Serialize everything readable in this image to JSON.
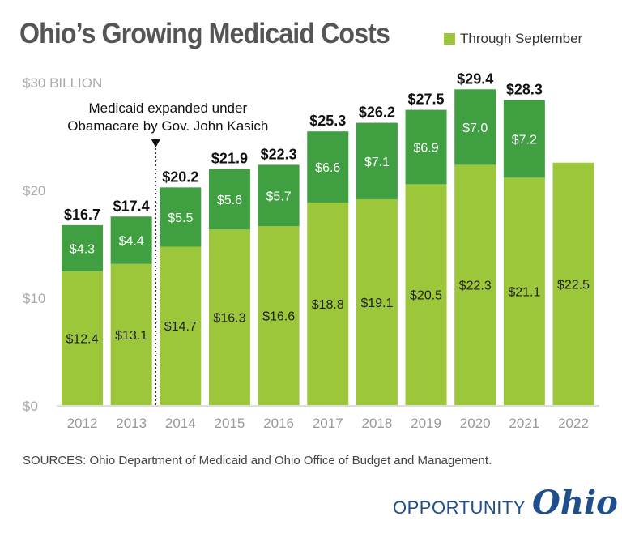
{
  "chart_data": {
    "type": "bar",
    "stacked": true,
    "title": "Ohio’s Growing Medicaid Costs",
    "ylabel": "$30 BILLION",
    "ylim": [
      0,
      30
    ],
    "yticks": [
      "$0",
      "$10",
      "$20"
    ],
    "categories": [
      "2012",
      "2013",
      "2014",
      "2015",
      "2016",
      "2017",
      "2018",
      "2019",
      "2020",
      "2021",
      "2022"
    ],
    "series": [
      {
        "name": "Through September",
        "color": "#9dc73b",
        "values": [
          12.4,
          13.1,
          14.7,
          16.3,
          16.6,
          18.8,
          19.1,
          20.5,
          22.3,
          21.1,
          22.5
        ],
        "labels": [
          "$12.4",
          "$13.1",
          "$14.7",
          "$16.3",
          "$16.6",
          "$18.8",
          "$19.1",
          "$20.5",
          "$22.3",
          "$21.1",
          "$22.5"
        ]
      },
      {
        "color": "#3f9f41",
        "values": [
          4.3,
          4.4,
          5.5,
          5.6,
          5.7,
          6.6,
          7.1,
          6.9,
          7.0,
          7.2,
          null
        ],
        "labels": [
          "$4.3",
          "$4.4",
          "$5.5",
          "$5.6",
          "$5.7",
          "$6.6",
          "$7.1",
          "$6.9",
          "$7.0",
          "$7.2",
          ""
        ]
      }
    ],
    "totals": [
      "$16.7",
      "$17.4",
      "$20.2",
      "$21.9",
      "$22.3",
      "$25.3",
      "$26.2",
      "$27.5",
      "$29.4",
      "$28.3",
      ""
    ],
    "annotation": {
      "line1": "Medicaid expanded under",
      "line2": "Obamacare by Gov. John Kasich",
      "between": [
        "2013",
        "2014"
      ]
    },
    "legend": "top-right",
    "grid": false
  },
  "sources": "SOURCES: Ohio Department of Medicaid and Ohio Office of Budget and Management.",
  "logo": {
    "part1": "OPPORTUNITY",
    "part2": "Ohio"
  }
}
